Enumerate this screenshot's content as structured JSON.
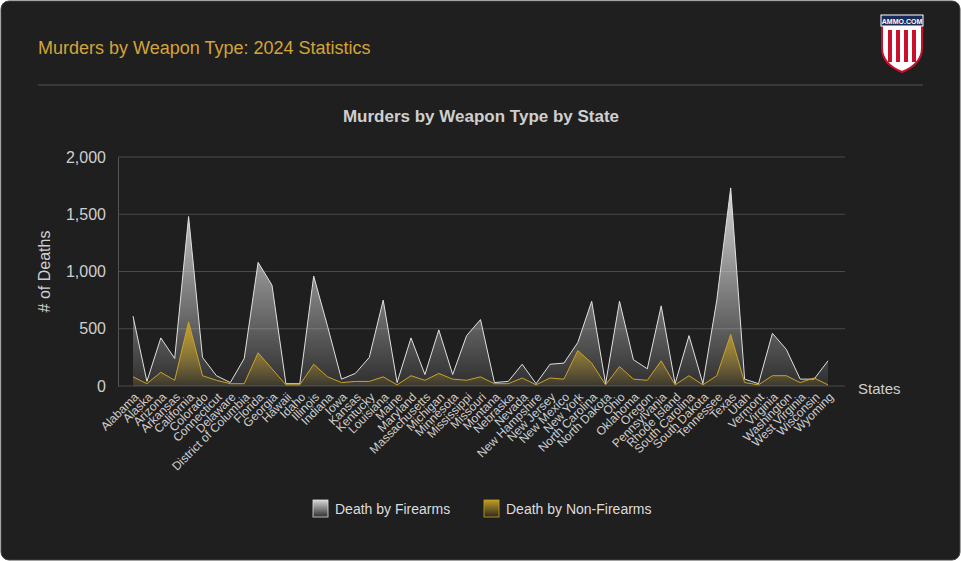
{
  "chart_data": {
    "type": "area",
    "title": "Murders by Weapon Type: 2024 Statistics",
    "subtitle": "Murders by Weapon Type by State",
    "y_label": "# of Deaths",
    "x_label": "States",
    "annotations": [
      "AMMO.COM"
    ],
    "categories": [
      "Alabama",
      "Alaska",
      "Arizona",
      "Arkansas",
      "California",
      "Colorado",
      "Connecticut",
      "Delaware",
      "District of Columbia",
      "Florida",
      "Georgia",
      "Hawaii",
      "Idaho",
      "Illinois",
      "Indiana",
      "Iowa",
      "Kansas",
      "Kentucky",
      "Louisiana",
      "Maine",
      "Maryland",
      "Massachusetts",
      "Michigan",
      "Minnesota",
      "Mississippi",
      "Missouri",
      "Montana",
      "Nebraska",
      "Nevada",
      "New Hampshire",
      "New Jersey",
      "New Mexico",
      "New York",
      "North Carolina",
      "North Dakota",
      "Ohio",
      "Oklahoma",
      "Oregon",
      "Pennsylvania",
      "Rhode Island",
      "South Carolina",
      "South Dakota",
      "Tennessee",
      "Texas",
      "Utah",
      "Vermont",
      "Virginia",
      "Washington",
      "West Virginia",
      "Wisconsin",
      "Wyoming"
    ],
    "series": [
      {
        "name": "Death by Firearms",
        "color": "#e0e0e0",
        "values": [
          610,
          40,
          420,
          240,
          1480,
          250,
          90,
          30,
          240,
          1080,
          880,
          20,
          20,
          960,
          520,
          60,
          110,
          250,
          750,
          30,
          420,
          100,
          490,
          100,
          440,
          580,
          30,
          40,
          190,
          20,
          190,
          200,
          380,
          740,
          20,
          740,
          230,
          150,
          700,
          20,
          440,
          20,
          750,
          1730,
          60,
          20,
          460,
          320,
          60,
          60,
          220
        ]
      },
      {
        "name": "Death by Non-Firearms",
        "color": "#c9a227",
        "values": [
          80,
          20,
          120,
          50,
          560,
          90,
          50,
          20,
          20,
          290,
          150,
          10,
          10,
          190,
          80,
          30,
          40,
          40,
          80,
          10,
          90,
          50,
          110,
          60,
          50,
          80,
          20,
          20,
          70,
          10,
          70,
          60,
          310,
          200,
          10,
          170,
          60,
          50,
          220,
          10,
          90,
          10,
          90,
          450,
          30,
          10,
          90,
          90,
          30,
          70,
          10
        ]
      }
    ],
    "ylim": [
      0,
      2000
    ],
    "yticks": [
      0,
      500,
      {
        "value": 1000,
        "label": "1,000"
      },
      {
        "value": 1500,
        "label": "1,500"
      },
      {
        "value": 2000,
        "label": "2,000"
      }
    ],
    "grid": true,
    "legend": "bottom"
  }
}
